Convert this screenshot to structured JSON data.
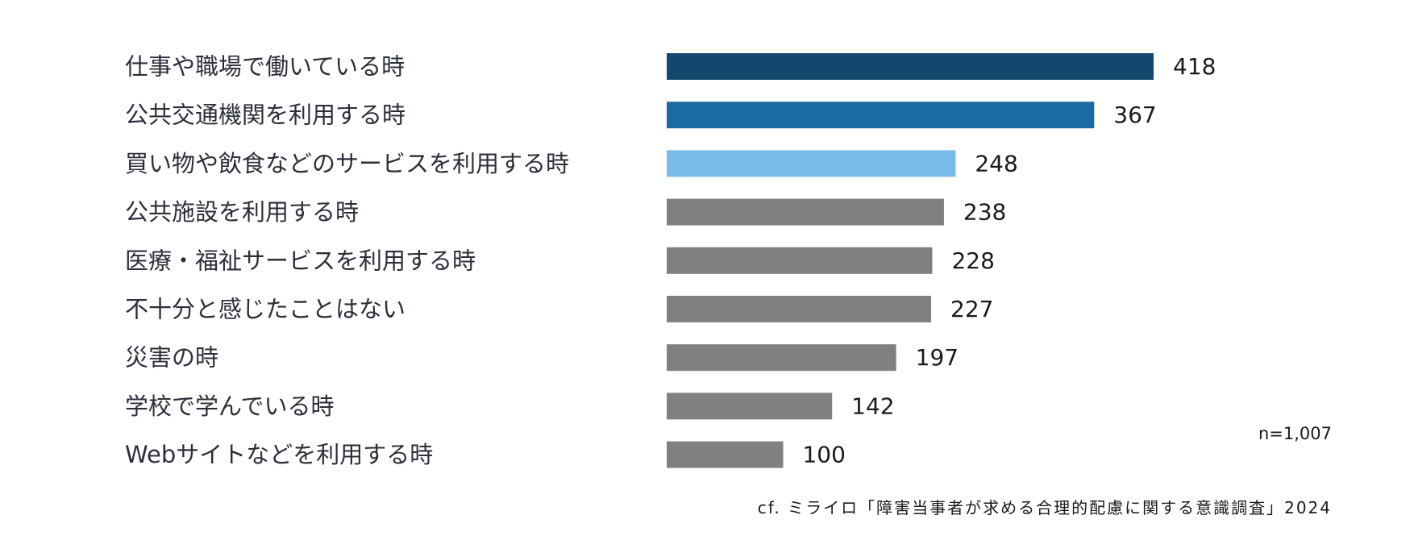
{
  "chart_data": {
    "type": "bar",
    "orientation": "horizontal",
    "categories": [
      "仕事や職場で働いている時",
      "公共交通機関を利用する時",
      "買い物や飲食などのサービスを利用する時",
      "公共施設を利用する時",
      "医療・福祉サービスを利用する時",
      "不十分と感じたことはない",
      "災害の時",
      "学校で学んでいる時",
      "Webサイトなどを利用する時"
    ],
    "values": [
      418,
      367,
      248,
      238,
      228,
      227,
      197,
      142,
      100
    ],
    "bar_colors": [
      "#12476e",
      "#1b6aa3",
      "#7abbea",
      "#808080",
      "#808080",
      "#808080",
      "#808080",
      "#808080",
      "#808080"
    ],
    "xlim": [
      0,
      418
    ],
    "grid": false,
    "legend": "none"
  },
  "annotations": {
    "sample_size": "n=1,007",
    "source": "cf. ミライロ「障害当事者が求める合理的配慮に関する意識調査」2024"
  }
}
